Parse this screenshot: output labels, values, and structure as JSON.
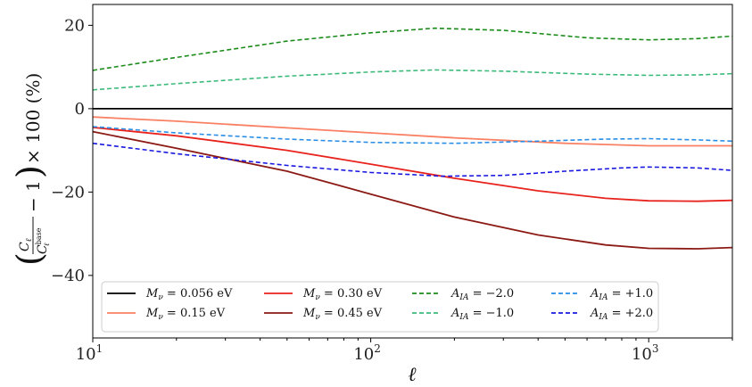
{
  "chart_data": {
    "type": "line",
    "title": "",
    "xlabel": "ℓ",
    "ylabel": "(C_ℓ / C_ℓ^base − 1) × 100 (%)",
    "ylabel_parts": {
      "num": "C",
      "num_sub": "ℓ",
      "den": "C",
      "den_sub": "ℓ",
      "den_sup": "base",
      "minus_one": "− 1",
      "times": "× 100 (%)"
    },
    "xscale": "log",
    "xlim": [
      10,
      2000
    ],
    "ylim": [
      -55,
      25
    ],
    "x_ticks": [
      {
        "value": 10,
        "base": "10",
        "exp": "1"
      },
      {
        "value": 100,
        "base": "10",
        "exp": "2"
      },
      {
        "value": 1000,
        "base": "10",
        "exp": "3"
      }
    ],
    "y_ticks": [
      {
        "value": 20,
        "label": "20"
      },
      {
        "value": 0,
        "label": "0"
      },
      {
        "value": -20,
        "label": "−20"
      },
      {
        "value": -40,
        "label": "−40"
      }
    ],
    "legend_position": "lower-left",
    "series": [
      {
        "name": "M_ν = 0.056 eV",
        "legend_var": "M",
        "legend_sub": "ν",
        "legend_rhs": "= 0.056 eV",
        "color": "#000000",
        "dash": "solid",
        "points": [
          [
            10,
            0
          ],
          [
            2000,
            0
          ]
        ]
      },
      {
        "name": "M_ν = 0.15 eV",
        "legend_var": "M",
        "legend_sub": "ν",
        "legend_rhs": "= 0.15 eV",
        "color": "#fa8064",
        "dash": "solid",
        "points": [
          [
            10,
            -2
          ],
          [
            20,
            -3
          ],
          [
            50,
            -4.6
          ],
          [
            100,
            -5.8
          ],
          [
            200,
            -7
          ],
          [
            500,
            -8.3
          ],
          [
            1000,
            -8.9
          ],
          [
            2000,
            -8.9
          ]
        ]
      },
      {
        "name": "M_ν = 0.30 eV",
        "legend_var": "M",
        "legend_sub": "ν",
        "legend_rhs": "= 0.30 eV",
        "color": "#e8231e",
        "dash": "solid",
        "points": [
          [
            10,
            -4.5
          ],
          [
            20,
            -6.5
          ],
          [
            50,
            -10
          ],
          [
            100,
            -13.3
          ],
          [
            200,
            -16.7
          ],
          [
            400,
            -19.7
          ],
          [
            700,
            -21.5
          ],
          [
            1000,
            -22.1
          ],
          [
            1500,
            -22.2
          ],
          [
            2000,
            -22
          ]
        ]
      },
      {
        "name": "M_ν = 0.45 eV",
        "legend_var": "M",
        "legend_sub": "ν",
        "legend_rhs": "= 0.45 eV",
        "color": "#8c1a14",
        "dash": "solid",
        "points": [
          [
            10,
            -5.5
          ],
          [
            20,
            -9.5
          ],
          [
            50,
            -15
          ],
          [
            100,
            -20.5
          ],
          [
            200,
            -26
          ],
          [
            400,
            -30.3
          ],
          [
            700,
            -32.7
          ],
          [
            1000,
            -33.5
          ],
          [
            1500,
            -33.6
          ],
          [
            2000,
            -33.3
          ]
        ]
      },
      {
        "name": "A_IA = −2.0",
        "legend_var": "A",
        "legend_sub": "IA",
        "legend_rhs": "= −2.0",
        "color": "#1b8c1b",
        "dash": "dashed",
        "points": [
          [
            10,
            9.2
          ],
          [
            20,
            12.3
          ],
          [
            50,
            16.2
          ],
          [
            100,
            18.2
          ],
          [
            170,
            19.3
          ],
          [
            300,
            18.8
          ],
          [
            600,
            17
          ],
          [
            1000,
            16.5
          ],
          [
            1500,
            16.8
          ],
          [
            2000,
            17.4
          ]
        ]
      },
      {
        "name": "A_IA = −1.0",
        "legend_var": "A",
        "legend_sub": "IA",
        "legend_rhs": "= −1.0",
        "color": "#3cba7a",
        "dash": "dashed",
        "points": [
          [
            10,
            4.5
          ],
          [
            20,
            6
          ],
          [
            50,
            7.8
          ],
          [
            100,
            8.8
          ],
          [
            170,
            9.3
          ],
          [
            300,
            9
          ],
          [
            600,
            8.3
          ],
          [
            1000,
            8
          ],
          [
            1500,
            8.1
          ],
          [
            2000,
            8.4
          ]
        ]
      },
      {
        "name": "A_IA = +1.0",
        "legend_var": "A",
        "legend_sub": "IA",
        "legend_rhs": "= +1.0",
        "color": "#2a8ee6",
        "dash": "dashed",
        "points": [
          [
            10,
            -4.3
          ],
          [
            20,
            -5.8
          ],
          [
            50,
            -7.3
          ],
          [
            100,
            -8.1
          ],
          [
            200,
            -8.3
          ],
          [
            400,
            -7.8
          ],
          [
            700,
            -7.3
          ],
          [
            1000,
            -7.2
          ],
          [
            1500,
            -7.5
          ],
          [
            2000,
            -7.8
          ]
        ]
      },
      {
        "name": "A_IA = +2.0",
        "legend_var": "A",
        "legend_sub": "IA",
        "legend_rhs": "= +2.0",
        "color": "#1a1ae0",
        "dash": "dashed",
        "points": [
          [
            10,
            -8.3
          ],
          [
            20,
            -10.8
          ],
          [
            50,
            -13.6
          ],
          [
            100,
            -15.3
          ],
          [
            180,
            -16.2
          ],
          [
            300,
            -16
          ],
          [
            500,
            -15
          ],
          [
            800,
            -14.2
          ],
          [
            1000,
            -14
          ],
          [
            1500,
            -14.2
          ],
          [
            2000,
            -14.8
          ]
        ]
      }
    ]
  }
}
